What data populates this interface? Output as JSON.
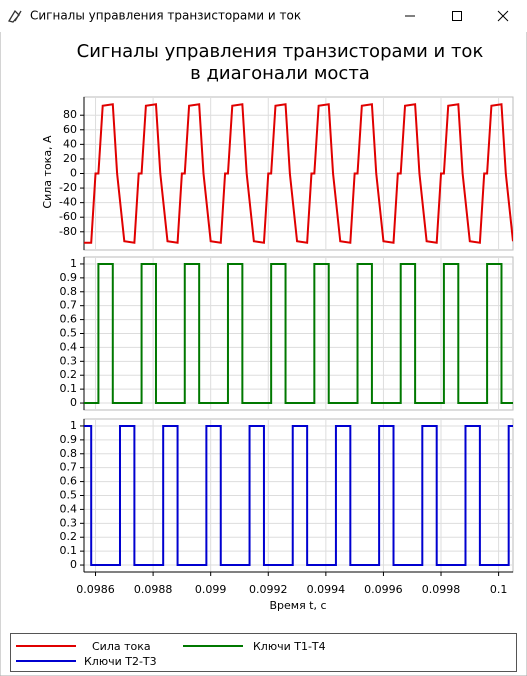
{
  "window": {
    "title": "Сигналы управления транзисторами и ток"
  },
  "chart_data": [
    {
      "type": "line",
      "title": [
        "Сигналы управления транзисторами и ток",
        "в диагонали моста"
      ],
      "ylabel": "Сила тока, А",
      "ylim": [
        -105,
        105
      ],
      "yticks": [
        80,
        60,
        40,
        20,
        0,
        -20,
        -40,
        -60,
        -80
      ],
      "grid": true,
      "series": [
        {
          "name": "Сила тока",
          "color": "#e00000",
          "x": [
            0.09856,
            0.098585,
            0.0986,
            0.09861,
            0.098625,
            0.09866,
            0.098675,
            0.0987,
            0.098735,
            0.09875,
            0.09876,
            0.098775,
            0.09881,
            0.098825,
            0.09885,
            0.098885,
            0.0989,
            0.09891,
            0.098925,
            0.09896,
            0.098975,
            0.099,
            0.099035,
            0.09905,
            0.09906,
            0.099075,
            0.09911,
            0.099125,
            0.09915,
            0.099185,
            0.0992,
            0.09921,
            0.099225,
            0.09926,
            0.099275,
            0.0993,
            0.099335,
            0.09935,
            0.09936,
            0.099375,
            0.09941,
            0.099425,
            0.09945,
            0.099485,
            0.0995,
            0.09951,
            0.099525,
            0.09956,
            0.099575,
            0.0996,
            0.099635,
            0.09965,
            0.09966,
            0.099675,
            0.09971,
            0.099725,
            0.09975,
            0.099785,
            0.0998,
            0.09981,
            0.099825,
            0.09986,
            0.099875,
            0.0999,
            0.099935,
            0.09995,
            0.09996,
            0.099975,
            0.10001,
            0.100025,
            0.10005
          ],
          "values": [
            -95,
            -95,
            0,
            0,
            93,
            95,
            0,
            -93,
            -95,
            0,
            0,
            93,
            95,
            0,
            -93,
            -95,
            0,
            0,
            93,
            95,
            0,
            -93,
            -95,
            0,
            0,
            93,
            95,
            0,
            -93,
            -95,
            0,
            0,
            93,
            95,
            0,
            -93,
            -95,
            0,
            0,
            93,
            95,
            0,
            -93,
            -95,
            0,
            0,
            93,
            95,
            0,
            -93,
            -95,
            0,
            0,
            93,
            95,
            0,
            -93,
            -95,
            0,
            0,
            93,
            95,
            0,
            -93,
            -95,
            0,
            0,
            93,
            95,
            0,
            -93
          ]
        }
      ]
    },
    {
      "type": "line",
      "ylim": [
        -0.05,
        1.05
      ],
      "yticks": [
        1,
        0.9,
        0.8,
        0.7,
        0.6,
        0.5,
        0.4,
        0.3,
        0.2,
        0.1,
        0
      ],
      "grid": true,
      "series": [
        {
          "name": "Ключи Т1-Т4",
          "color": "#007800",
          "x": [
            0.09856,
            0.09861,
            0.09861,
            0.09866,
            0.09866,
            0.09876,
            0.09876,
            0.09881,
            0.09881,
            0.09891,
            0.09891,
            0.09896,
            0.09896,
            0.09906,
            0.09906,
            0.09911,
            0.09911,
            0.09921,
            0.09921,
            0.09926,
            0.09926,
            0.09936,
            0.09936,
            0.09941,
            0.09941,
            0.09951,
            0.09951,
            0.09956,
            0.09956,
            0.09966,
            0.09966,
            0.09971,
            0.09971,
            0.09981,
            0.09981,
            0.09986,
            0.09986,
            0.09996,
            0.09996,
            0.10001,
            0.10001,
            0.10005
          ],
          "values": [
            0,
            0,
            1,
            1,
            0,
            0,
            1,
            1,
            0,
            0,
            1,
            1,
            0,
            0,
            1,
            1,
            0,
            0,
            1,
            1,
            0,
            0,
            1,
            1,
            0,
            0,
            1,
            1,
            0,
            0,
            1,
            1,
            0,
            0,
            1,
            1,
            0,
            0,
            1,
            1,
            0,
            0
          ]
        }
      ]
    },
    {
      "type": "line",
      "ylim": [
        -0.05,
        1.05
      ],
      "yticks": [
        1,
        0.9,
        0.8,
        0.7,
        0.6,
        0.5,
        0.4,
        0.3,
        0.2,
        0.1,
        0
      ],
      "grid": true,
      "xlabel": "Время t, с",
      "xlim": [
        0.09856,
        0.10005
      ],
      "xticks": [
        0.0986,
        0.0988,
        0.099,
        0.0992,
        0.0994,
        0.0996,
        0.0998,
        0.1
      ],
      "series": [
        {
          "name": "Ключи Т2-Т3",
          "color": "#0000d0",
          "x": [
            0.09856,
            0.098585,
            0.098585,
            0.098685,
            0.098685,
            0.098735,
            0.098735,
            0.098835,
            0.098835,
            0.098885,
            0.098885,
            0.098985,
            0.098985,
            0.099035,
            0.099035,
            0.099135,
            0.099135,
            0.099185,
            0.099185,
            0.099285,
            0.099285,
            0.099335,
            0.099335,
            0.099435,
            0.099435,
            0.099485,
            0.099485,
            0.099585,
            0.099585,
            0.099635,
            0.099635,
            0.099735,
            0.099735,
            0.099785,
            0.099785,
            0.099885,
            0.099885,
            0.099935,
            0.099935,
            0.100035,
            0.100035,
            0.10005
          ],
          "values": [
            1,
            1,
            0,
            0,
            1,
            1,
            0,
            0,
            1,
            1,
            0,
            0,
            1,
            1,
            0,
            0,
            1,
            1,
            0,
            0,
            1,
            1,
            0,
            0,
            1,
            1,
            0,
            0,
            1,
            1,
            0,
            0,
            1,
            1,
            0,
            0,
            1,
            1,
            0,
            0,
            1,
            1
          ]
        }
      ]
    }
  ]
}
